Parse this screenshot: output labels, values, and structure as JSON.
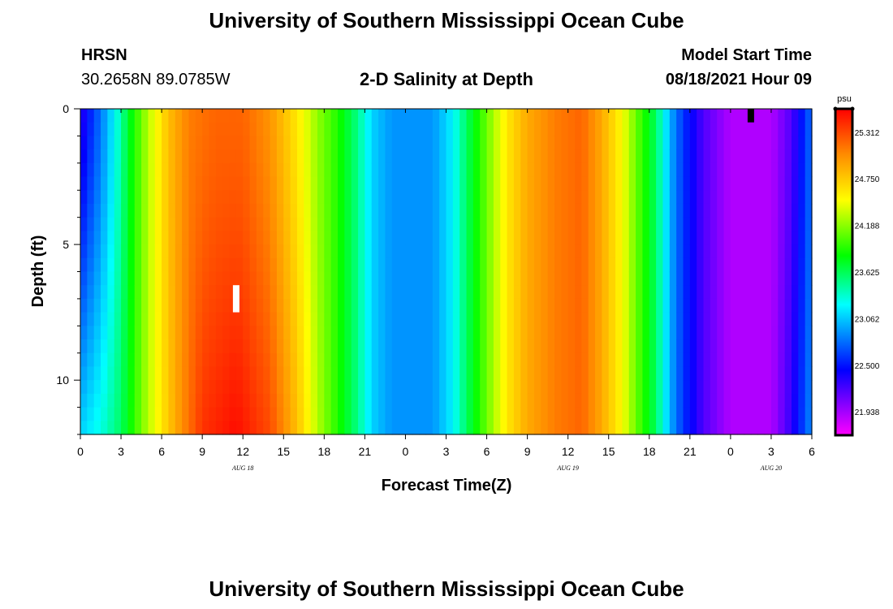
{
  "header": {
    "title_top": "University of Southern Mississippi Ocean Cube",
    "title_bottom": "University of Southern Mississippi Ocean Cube",
    "station": "HRSN",
    "coords": "30.2658N  89.0785W",
    "chart_title": "2-D Salinity at Depth",
    "model_start_label": "Model Start Time",
    "model_start_value": "08/18/2021 Hour 09"
  },
  "chart_data": {
    "type": "heatmap",
    "title": "2-D Salinity at Depth",
    "xlabel": "Forecast Time(Z)",
    "ylabel": "Depth (ft)",
    "x_range_hours": [
      0,
      54
    ],
    "y_range_ft": [
      0,
      12
    ],
    "y_reversed": true,
    "x_ticks": [
      "0",
      "3",
      "6",
      "9",
      "12",
      "15",
      "18",
      "21",
      "0",
      "3",
      "6",
      "9",
      "12",
      "15",
      "18",
      "21",
      "0",
      "3",
      "6"
    ],
    "y_ticks": [
      "0",
      "5",
      "10"
    ],
    "y_ticks_values": [
      0,
      5,
      10
    ],
    "date_labels": [
      {
        "text": "AUG 18",
        "hour": 12
      },
      {
        "text": "AUG 19",
        "hour": 36
      },
      {
        "text": "AUG 20",
        "hour": 51
      }
    ],
    "colorbar": {
      "unit": "psu",
      "min": 21.656,
      "max": 25.594,
      "labels": [
        "25.312",
        "24.750",
        "24.188",
        "23.625",
        "23.062",
        "22.500",
        "21.938"
      ]
    },
    "salinity_profile_surface_psu": [
      {
        "h": 0,
        "v": 22.3
      },
      {
        "h": 1.5,
        "v": 22.8
      },
      {
        "h": 2.5,
        "v": 23.2
      },
      {
        "h": 3.5,
        "v": 23.7
      },
      {
        "h": 5,
        "v": 24.3
      },
      {
        "h": 6.5,
        "v": 24.8
      },
      {
        "h": 8,
        "v": 25.1
      },
      {
        "h": 10,
        "v": 25.2
      },
      {
        "h": 12,
        "v": 25.2
      },
      {
        "h": 14,
        "v": 25.0
      },
      {
        "h": 16,
        "v": 24.6
      },
      {
        "h": 17.5,
        "v": 24.2
      },
      {
        "h": 19,
        "v": 23.9
      },
      {
        "h": 20.5,
        "v": 23.5
      },
      {
        "h": 21.5,
        "v": 23.1
      },
      {
        "h": 23,
        "v": 22.9
      },
      {
        "h": 26,
        "v": 22.9
      },
      {
        "h": 27.5,
        "v": 23.2
      },
      {
        "h": 28.5,
        "v": 23.6
      },
      {
        "h": 30,
        "v": 24.1
      },
      {
        "h": 31.5,
        "v": 24.6
      },
      {
        "h": 33,
        "v": 24.9
      },
      {
        "h": 35,
        "v": 25.1
      },
      {
        "h": 37,
        "v": 25.2
      },
      {
        "h": 38.5,
        "v": 24.9
      },
      {
        "h": 40,
        "v": 24.5
      },
      {
        "h": 41,
        "v": 24.1
      },
      {
        "h": 42.5,
        "v": 23.6
      },
      {
        "h": 43.5,
        "v": 23.0
      },
      {
        "h": 44.5,
        "v": 22.6
      },
      {
        "h": 46,
        "v": 22.2
      },
      {
        "h": 48,
        "v": 21.9
      },
      {
        "h": 51,
        "v": 21.9
      },
      {
        "h": 52.5,
        "v": 22.2
      },
      {
        "h": 54,
        "v": 22.8
      }
    ],
    "salinity_profile_bottom_psu": [
      {
        "h": 0,
        "v": 23.1
      },
      {
        "h": 1.5,
        "v": 23.3
      },
      {
        "h": 3,
        "v": 23.6
      },
      {
        "h": 5,
        "v": 24.3
      },
      {
        "h": 7,
        "v": 24.9
      },
      {
        "h": 9,
        "v": 25.4
      },
      {
        "h": 11.5,
        "v": 25.55
      },
      {
        "h": 14,
        "v": 25.3
      },
      {
        "h": 16,
        "v": 24.8
      },
      {
        "h": 17.5,
        "v": 24.3
      },
      {
        "h": 19,
        "v": 23.9
      },
      {
        "h": 20.5,
        "v": 23.5
      },
      {
        "h": 21.5,
        "v": 23.1
      },
      {
        "h": 23,
        "v": 22.9
      },
      {
        "h": 26,
        "v": 22.9
      },
      {
        "h": 27.5,
        "v": 23.2
      },
      {
        "h": 28.5,
        "v": 23.6
      },
      {
        "h": 30,
        "v": 24.1
      },
      {
        "h": 31.5,
        "v": 24.6
      },
      {
        "h": 33,
        "v": 24.9
      },
      {
        "h": 35,
        "v": 25.1
      },
      {
        "h": 37,
        "v": 25.2
      },
      {
        "h": 38.5,
        "v": 24.9
      },
      {
        "h": 40,
        "v": 24.5
      },
      {
        "h": 41,
        "v": 24.1
      },
      {
        "h": 42.5,
        "v": 23.6
      },
      {
        "h": 43.5,
        "v": 23.0
      },
      {
        "h": 44.5,
        "v": 22.6
      },
      {
        "h": 46,
        "v": 22.2
      },
      {
        "h": 48,
        "v": 21.9
      },
      {
        "h": 51,
        "v": 21.9
      },
      {
        "h": 52.5,
        "v": 22.3
      },
      {
        "h": 54,
        "v": 22.9
      }
    ],
    "markers": [
      {
        "name": "white-marker",
        "hour": 11.5,
        "depth_from": 6.5,
        "depth_to": 7.5,
        "color": "#ffffff"
      },
      {
        "name": "black-marker",
        "hour": 49.5,
        "depth_from": 0.0,
        "depth_to": 0.5,
        "color": "#000000"
      }
    ],
    "grid": false
  }
}
